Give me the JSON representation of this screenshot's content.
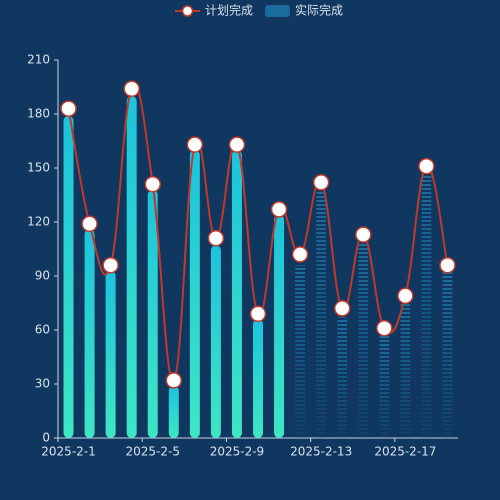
{
  "chart_data": {
    "type": "bar_line",
    "categories": [
      "2025-2-1",
      null,
      null,
      null,
      "2025-2-5",
      null,
      null,
      null,
      "2025-2-9",
      null,
      null,
      null,
      "2025-2-13",
      null,
      null,
      null,
      "2025-2-17",
      null,
      null
    ],
    "series": [
      {
        "name": "计划完成",
        "type": "line",
        "color": "#c0392b",
        "values": [
          183,
          119,
          96,
          194,
          141,
          32,
          163,
          111,
          163,
          69,
          127,
          102,
          142,
          72,
          113,
          61,
          79,
          151,
          96
        ]
      },
      {
        "name": "实际完成",
        "type": "bar",
        "color": "#1ec8d8",
        "values": [
          179,
          116,
          93,
          190,
          138,
          29,
          160,
          107,
          160,
          66,
          124,
          96,
          138,
          67,
          110,
          57,
          77,
          148,
          93
        ],
        "bar_style": [
          "solid",
          "solid",
          "solid",
          "solid",
          "solid",
          "solid",
          "solid",
          "solid",
          "solid",
          "solid",
          "solid",
          "dashed",
          "dashed",
          "dashed",
          "dashed",
          "dashed",
          "dashed",
          "dashed",
          "dashed"
        ]
      }
    ],
    "ylim": [
      0,
      210
    ],
    "yticks": [
      0,
      30,
      60,
      90,
      120,
      150,
      180,
      210
    ],
    "grid": false,
    "legend": "top"
  }
}
